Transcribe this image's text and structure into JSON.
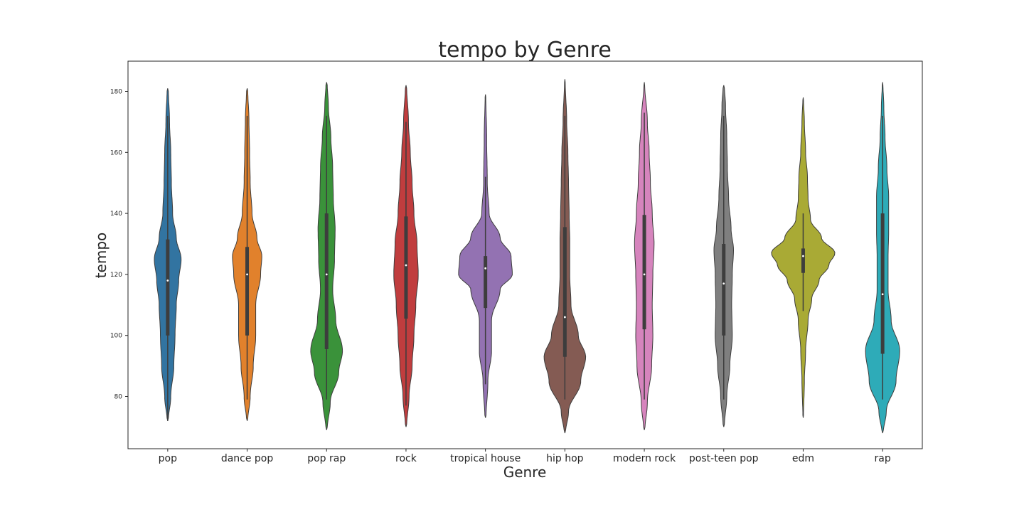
{
  "chart_data": {
    "type": "violin",
    "title": "tempo by Genre",
    "xlabel": "Genre",
    "ylabel": "tempo",
    "ylim": [
      63,
      190
    ],
    "yticks": [
      80,
      100,
      120,
      140,
      160,
      180
    ],
    "grid": false,
    "legend": "none",
    "categories": [
      "pop",
      "dance pop",
      "pop rap",
      "rock",
      "tropical house",
      "hip hop",
      "modern rock",
      "post-teen pop",
      "edm",
      "rap"
    ],
    "series": [
      {
        "color": "#3274a1",
        "min": 72,
        "max": 181,
        "q1": 100,
        "median": 118,
        "q3": 131.5,
        "whisker_low": 72,
        "whisker_high": 172,
        "density": [
          [
            72,
            0.01
          ],
          [
            80,
            0.05
          ],
          [
            90,
            0.1
          ],
          [
            100,
            0.12
          ],
          [
            110,
            0.14
          ],
          [
            118,
            0.18
          ],
          [
            125,
            0.22
          ],
          [
            132,
            0.14
          ],
          [
            140,
            0.08
          ],
          [
            150,
            0.06
          ],
          [
            160,
            0.05
          ],
          [
            170,
            0.03
          ],
          [
            181,
            0.01
          ]
        ]
      },
      {
        "color": "#e1812c",
        "min": 72,
        "max": 181,
        "q1": 100,
        "median": 120,
        "q3": 129,
        "whisker_low": 79,
        "whisker_high": 172,
        "density": [
          [
            72,
            0.01
          ],
          [
            80,
            0.05
          ],
          [
            90,
            0.1
          ],
          [
            100,
            0.14
          ],
          [
            110,
            0.14
          ],
          [
            120,
            0.22
          ],
          [
            126,
            0.24
          ],
          [
            132,
            0.16
          ],
          [
            140,
            0.08
          ],
          [
            150,
            0.05
          ],
          [
            160,
            0.04
          ],
          [
            170,
            0.03
          ],
          [
            181,
            0.01
          ]
        ]
      },
      {
        "color": "#3a923a",
        "min": 69,
        "max": 183,
        "q1": 95.5,
        "median": 120,
        "q3": 140,
        "whisker_low": 79,
        "whisker_high": 172,
        "density": [
          [
            69,
            0.01
          ],
          [
            78,
            0.06
          ],
          [
            88,
            0.2
          ],
          [
            95,
            0.26
          ],
          [
            105,
            0.15
          ],
          [
            115,
            0.1
          ],
          [
            125,
            0.13
          ],
          [
            135,
            0.14
          ],
          [
            145,
            0.11
          ],
          [
            155,
            0.1
          ],
          [
            165,
            0.07
          ],
          [
            175,
            0.03
          ],
          [
            183,
            0.01
          ]
        ]
      },
      {
        "color": "#c03d3e",
        "min": 70,
        "max": 182,
        "q1": 105.5,
        "median": 123,
        "q3": 139,
        "whisker_low": 77,
        "whisker_high": 170,
        "density": [
          [
            70,
            0.01
          ],
          [
            80,
            0.05
          ],
          [
            90,
            0.1
          ],
          [
            100,
            0.13
          ],
          [
            110,
            0.16
          ],
          [
            120,
            0.2
          ],
          [
            130,
            0.18
          ],
          [
            140,
            0.13
          ],
          [
            150,
            0.1
          ],
          [
            160,
            0.07
          ],
          [
            170,
            0.04
          ],
          [
            182,
            0.01
          ]
        ]
      },
      {
        "color": "#9372b2",
        "min": 73,
        "max": 179,
        "q1": 109,
        "median": 122,
        "q3": 126,
        "whisker_low": 84,
        "whisker_high": 152,
        "density": [
          [
            73,
            0.01
          ],
          [
            85,
            0.04
          ],
          [
            95,
            0.1
          ],
          [
            105,
            0.1
          ],
          [
            115,
            0.24
          ],
          [
            120,
            0.44
          ],
          [
            126,
            0.42
          ],
          [
            132,
            0.24
          ],
          [
            140,
            0.06
          ],
          [
            150,
            0.03
          ],
          [
            165,
            0.02
          ],
          [
            179,
            0.005
          ]
        ]
      },
      {
        "color": "#845b53",
        "min": 68,
        "max": 184,
        "q1": 93,
        "median": 106,
        "q3": 135.5,
        "whisker_low": 79,
        "whisker_high": 172,
        "density": [
          [
            68,
            0.01
          ],
          [
            75,
            0.06
          ],
          [
            85,
            0.26
          ],
          [
            93,
            0.34
          ],
          [
            100,
            0.22
          ],
          [
            110,
            0.1
          ],
          [
            120,
            0.08
          ],
          [
            130,
            0.08
          ],
          [
            140,
            0.07
          ],
          [
            150,
            0.06
          ],
          [
            160,
            0.05
          ],
          [
            170,
            0.03
          ],
          [
            184,
            0.005
          ]
        ]
      },
      {
        "color": "#d684bd",
        "min": 69,
        "max": 183,
        "q1": 102,
        "median": 120,
        "q3": 139.5,
        "whisker_low": 79,
        "whisker_high": 173,
        "density": [
          [
            69,
            0.01
          ],
          [
            78,
            0.05
          ],
          [
            90,
            0.12
          ],
          [
            100,
            0.14
          ],
          [
            110,
            0.13
          ],
          [
            120,
            0.14
          ],
          [
            130,
            0.16
          ],
          [
            140,
            0.13
          ],
          [
            150,
            0.1
          ],
          [
            160,
            0.08
          ],
          [
            170,
            0.05
          ],
          [
            183,
            0.005
          ]
        ]
      },
      {
        "color": "#7f7f7f",
        "min": 70,
        "max": 182,
        "q1": 100,
        "median": 117,
        "q3": 130,
        "whisker_low": 79,
        "whisker_high": 172,
        "density": [
          [
            70,
            0.01
          ],
          [
            80,
            0.05
          ],
          [
            90,
            0.1
          ],
          [
            100,
            0.14
          ],
          [
            110,
            0.13
          ],
          [
            120,
            0.14
          ],
          [
            128,
            0.16
          ],
          [
            135,
            0.12
          ],
          [
            145,
            0.08
          ],
          [
            155,
            0.06
          ],
          [
            165,
            0.05
          ],
          [
            175,
            0.03
          ],
          [
            182,
            0.01
          ]
        ]
      },
      {
        "color": "#a9aa35",
        "min": 73,
        "max": 178,
        "q1": 120.5,
        "median": 126,
        "q3": 128.5,
        "whisker_low": 108,
        "whisker_high": 140,
        "density": [
          [
            73,
            0.005
          ],
          [
            85,
            0.02
          ],
          [
            95,
            0.04
          ],
          [
            105,
            0.08
          ],
          [
            112,
            0.14
          ],
          [
            118,
            0.26
          ],
          [
            123,
            0.42
          ],
          [
            127,
            0.52
          ],
          [
            132,
            0.3
          ],
          [
            138,
            0.12
          ],
          [
            145,
            0.08
          ],
          [
            152,
            0.07
          ],
          [
            160,
            0.04
          ],
          [
            170,
            0.02
          ],
          [
            178,
            0.005
          ]
        ]
      },
      {
        "color": "#2eabb8",
        "min": 68,
        "max": 183,
        "q1": 94,
        "median": 113.5,
        "q3": 140,
        "whisker_low": 79,
        "whisker_high": 172,
        "density": [
          [
            68,
            0.01
          ],
          [
            75,
            0.06
          ],
          [
            85,
            0.22
          ],
          [
            95,
            0.28
          ],
          [
            105,
            0.14
          ],
          [
            115,
            0.09
          ],
          [
            125,
            0.09
          ],
          [
            135,
            0.1
          ],
          [
            145,
            0.1
          ],
          [
            155,
            0.07
          ],
          [
            165,
            0.04
          ],
          [
            175,
            0.02
          ],
          [
            183,
            0.005
          ]
        ]
      }
    ]
  }
}
